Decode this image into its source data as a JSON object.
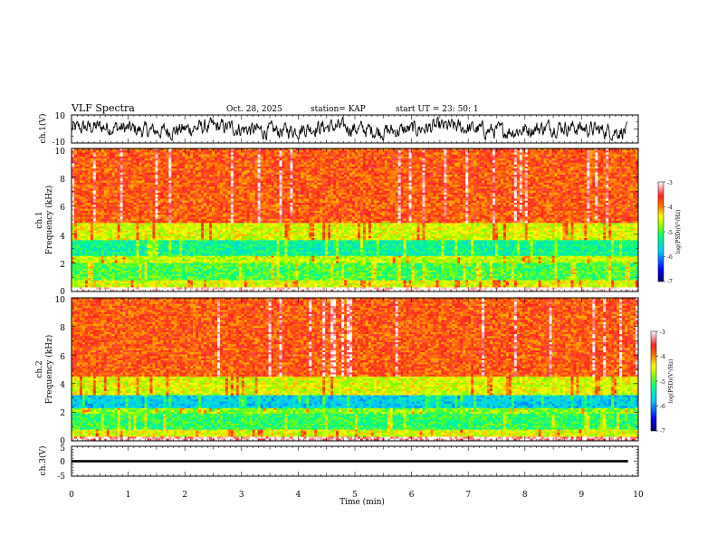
{
  "header": {
    "title": "VLF Spectra",
    "date": "Oct. 28, 2025",
    "station": "station= KAP",
    "start": "start  UT  =   23: 50: 1"
  },
  "colors": {
    "spectrogram_scale": [
      "#000066",
      "#0000ff",
      "#00c8ff",
      "#00ff80",
      "#80ff00",
      "#ffff00",
      "#ff8000",
      "#ff2020",
      "#ffb0b0",
      "#ffffff"
    ],
    "waveform": "#000000",
    "ch3_bar": "#000000"
  },
  "chart_data": [
    {
      "type": "line",
      "ylabel": "ch.1(V)",
      "ylim": [
        -10,
        10
      ],
      "y_tick_labels": [
        "10",
        "-10"
      ],
      "xlim": [
        0,
        10
      ],
      "description_of_series": "noisy waveform fluctuating roughly between -8 and 8 V"
    },
    {
      "type": "heatmap",
      "ylabel": "ch.1\nFrequency (kHz)",
      "ylim": [
        0,
        10
      ],
      "y_tick_labels": [
        "0",
        "2",
        "4",
        "6",
        "8",
        "10"
      ],
      "colorbar": {
        "label": "log(PSD)(V²/Hz)",
        "range": [
          -7,
          -3
        ],
        "tick_labels": [
          "-3",
          "-4",
          "-5",
          "-6",
          "-7"
        ]
      },
      "bands_khz_logpsd": [
        {
          "from": 0,
          "to": 0.3,
          "value": -3.0
        },
        {
          "from": 0.3,
          "to": 0.8,
          "value": -4.5
        },
        {
          "from": 0.8,
          "to": 2.0,
          "value": -5.0
        },
        {
          "from": 2.0,
          "to": 2.5,
          "value": -4.6
        },
        {
          "from": 2.5,
          "to": 3.6,
          "value": -5.3
        },
        {
          "from": 3.6,
          "to": 4.8,
          "value": -4.5
        },
        {
          "from": 4.8,
          "to": 10,
          "value": -3.8
        }
      ]
    },
    {
      "type": "heatmap",
      "ylabel": "ch.2\nFrequency (kHz)",
      "ylim": [
        0,
        10
      ],
      "y_tick_labels": [
        "0",
        "2",
        "4",
        "6",
        "8",
        "10"
      ],
      "colorbar": {
        "label": "log(PSD)(V²/Hz)",
        "range": [
          -7,
          -3
        ],
        "tick_labels": [
          "-3",
          "-4",
          "-5",
          "-6",
          "-7"
        ]
      },
      "bands_khz_logpsd": [
        {
          "from": 0,
          "to": 0.3,
          "value": -3.2
        },
        {
          "from": 0.3,
          "to": 0.8,
          "value": -4.5
        },
        {
          "from": 0.8,
          "to": 1.9,
          "value": -5.1
        },
        {
          "from": 1.9,
          "to": 2.3,
          "value": -4.8
        },
        {
          "from": 2.3,
          "to": 3.2,
          "value": -5.7
        },
        {
          "from": 3.2,
          "to": 4.5,
          "value": -4.5
        },
        {
          "from": 4.5,
          "to": 10,
          "value": -3.8
        }
      ]
    },
    {
      "type": "line",
      "ylabel": "ch.3(V)",
      "ylim": [
        -5,
        5
      ],
      "y_tick_labels": [
        "5",
        "0",
        "-5"
      ],
      "xlabel": "Time  (min)",
      "xlim": [
        0,
        10
      ],
      "x_tick_labels": [
        "0",
        "1",
        "2",
        "3",
        "4",
        "5",
        "6",
        "7",
        "8",
        "9",
        "10"
      ],
      "description_of_series": "thick flat line near 0 V from 0 to ~9.8 min"
    }
  ]
}
